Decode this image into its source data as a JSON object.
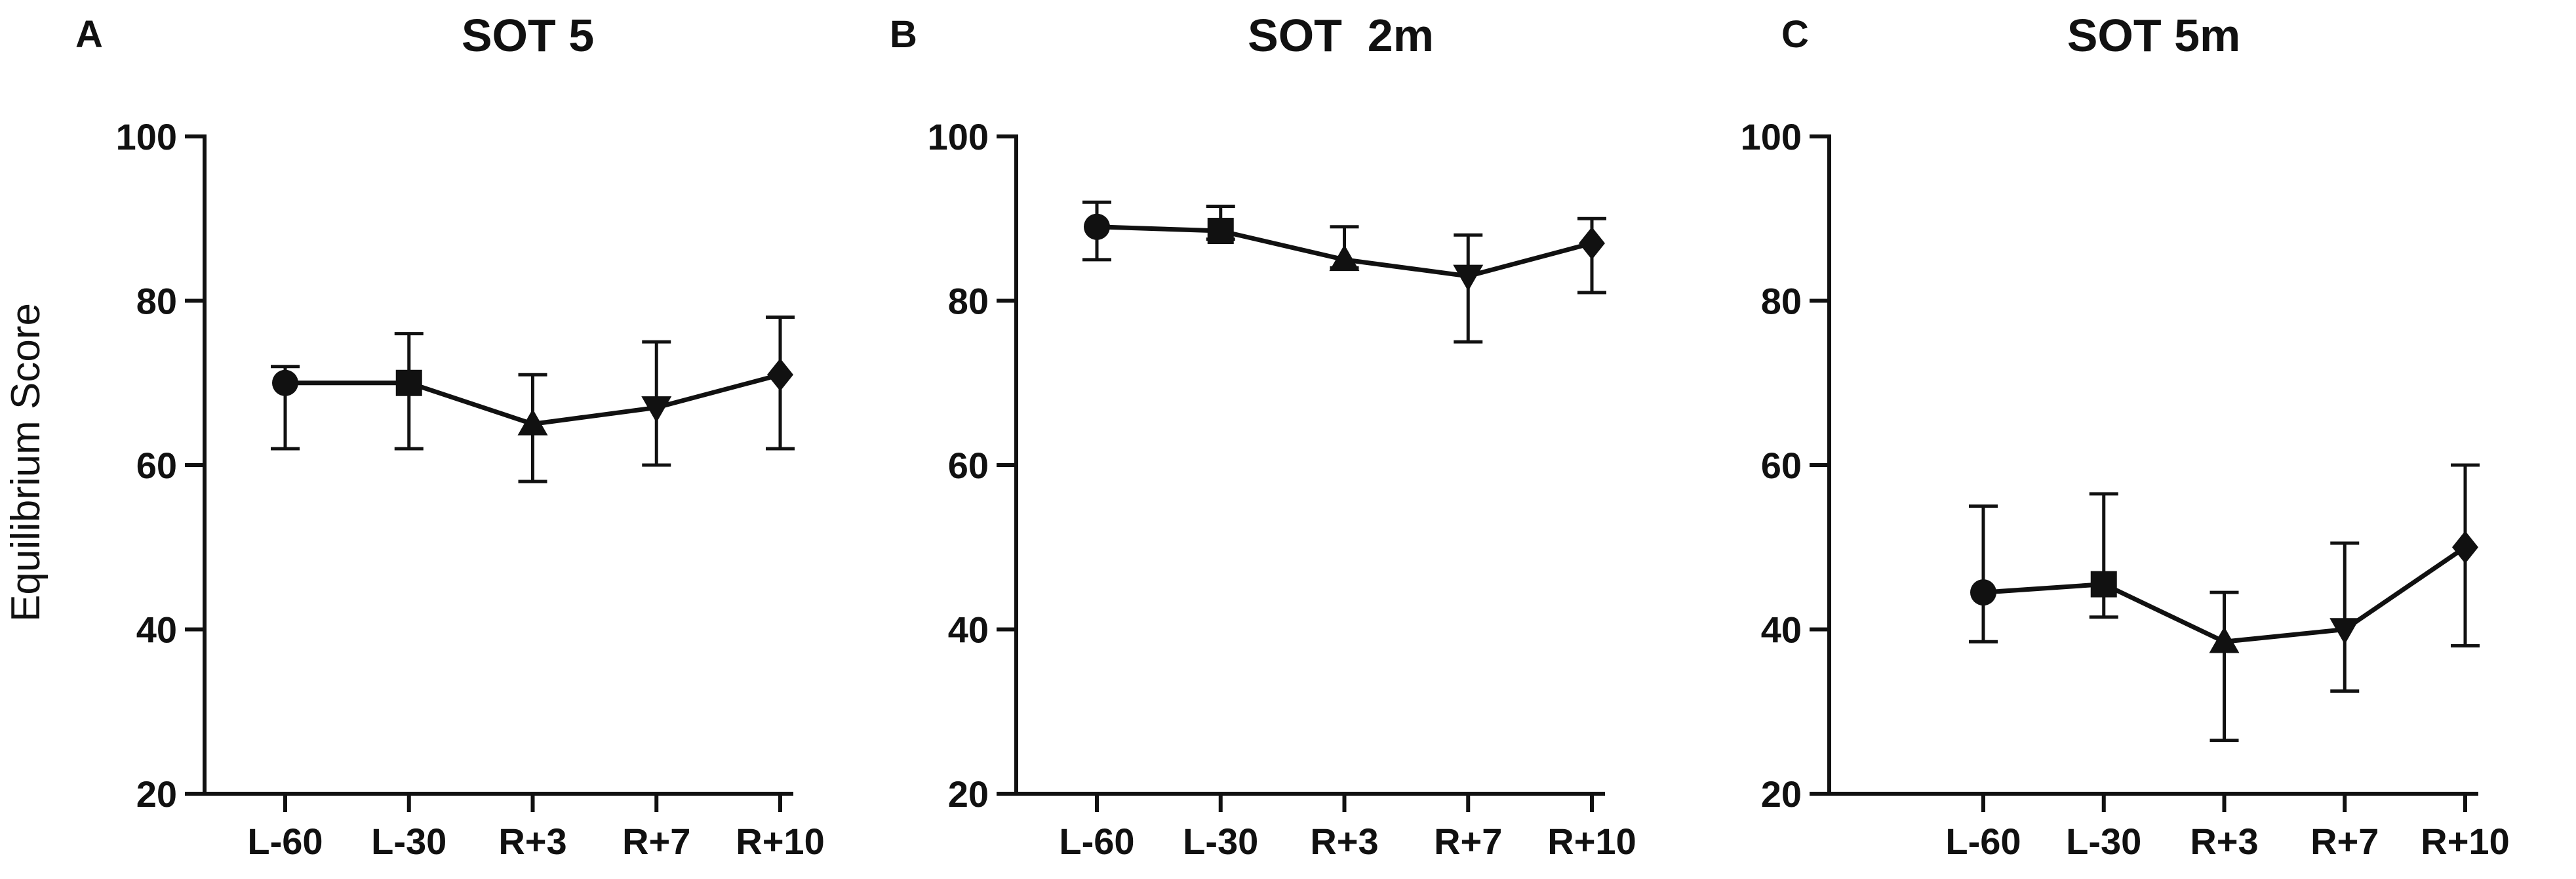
{
  "figure": {
    "ylabel": "Equilibrium Score"
  },
  "chart_data": [
    {
      "type": "line",
      "panel": "A",
      "title": "SOT 5",
      "xlabel": "",
      "ylabel": "Equilibrium Score",
      "categories": [
        "L-60",
        "L-30",
        "R+3",
        "R+7",
        "R+10"
      ],
      "ylim": [
        20,
        100
      ],
      "yticks": [
        20,
        40,
        60,
        80,
        100
      ],
      "grid": false,
      "legend": "none",
      "markers": [
        "circle",
        "square",
        "triangle-up",
        "triangle-down",
        "diamond"
      ],
      "series": [
        {
          "values": [
            70,
            70,
            65,
            67,
            71
          ],
          "error_low": [
            62,
            62,
            58,
            60,
            62
          ],
          "error_high": [
            72,
            76,
            71,
            75,
            78
          ]
        }
      ]
    },
    {
      "type": "line",
      "panel": "B",
      "title": "SOT  2m",
      "xlabel": "",
      "ylabel": "",
      "categories": [
        "L-60",
        "L-30",
        "R+3",
        "R+7",
        "R+10"
      ],
      "ylim": [
        20,
        100
      ],
      "yticks": [
        20,
        40,
        60,
        80,
        100
      ],
      "grid": false,
      "legend": "none",
      "markers": [
        "circle",
        "square",
        "triangle-up",
        "triangle-down",
        "diamond"
      ],
      "series": [
        {
          "values": [
            89,
            88.5,
            85,
            83,
            87
          ],
          "error_low": [
            85,
            87.5,
            84,
            75,
            81
          ],
          "error_high": [
            92,
            91.5,
            89,
            88,
            90
          ]
        }
      ]
    },
    {
      "type": "line",
      "panel": "C",
      "title": "SOT 5m",
      "xlabel": "",
      "ylabel": "",
      "categories": [
        "L-60",
        "L-30",
        "R+3",
        "R+7",
        "R+10"
      ],
      "ylim": [
        20,
        100
      ],
      "yticks": [
        20,
        40,
        60,
        80,
        100
      ],
      "grid": false,
      "legend": "none",
      "markers": [
        "circle",
        "square",
        "triangle-up",
        "triangle-down",
        "diamond"
      ],
      "series": [
        {
          "values": [
            44.5,
            45.5,
            38.5,
            40,
            50
          ],
          "error_low": [
            38.5,
            41.5,
            26.5,
            32.5,
            38
          ],
          "error_high": [
            55,
            56.5,
            44.5,
            50.5,
            60
          ]
        }
      ]
    }
  ]
}
